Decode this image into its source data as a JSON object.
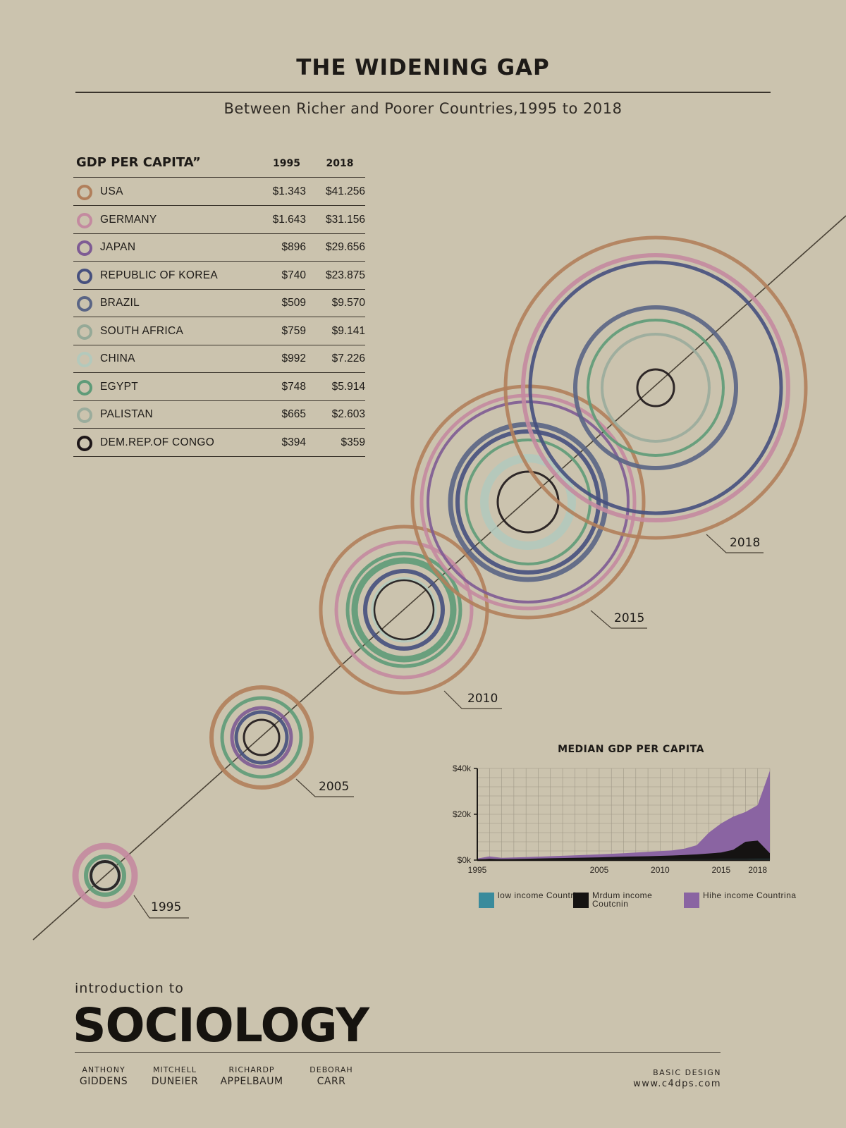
{
  "header": {
    "title": "THE WIDENING GAP",
    "subtitle": "Between Richer and Poorer Countries,1995 to 2018"
  },
  "table": {
    "heading": "GDP PER CAPITA”",
    "col_1995": "1995",
    "col_2018": "2018",
    "rows": [
      {
        "country": "USA",
        "v1995": "$1.343",
        "v2018": "$41.256",
        "color": "#b17f5b"
      },
      {
        "country": "GERMANY",
        "v1995": "$1.643",
        "v2018": "$31.156",
        "color": "#c48aa0"
      },
      {
        "country": "JAPAN",
        "v1995": "$896",
        "v2018": "$29.656",
        "color": "#7e5b94"
      },
      {
        "country": "REPUBLIC OF KOREA",
        "v1995": "$740",
        "v2018": "$23.875",
        "color": "#46507e"
      },
      {
        "country": "BRAZIL",
        "v1995": "$509",
        "v2018": "$9.570",
        "color": "#5a6585"
      },
      {
        "country": "SOUTH AFRICA",
        "v1995": "$759",
        "v2018": "$9.141",
        "color": "#95a997"
      },
      {
        "country": "CHINA",
        "v1995": "$992",
        "v2018": "$7.226",
        "color": "#b3c9bc"
      },
      {
        "country": "EGYPT",
        "v1995": "$748",
        "v2018": "$5.914",
        "color": "#5e9b78"
      },
      {
        "country": "PALISTAN",
        "v1995": "$665",
        "v2018": "$2.603",
        "color": "#9aac9c"
      },
      {
        "country": "DEM.REP.OF CONGO",
        "v1995": "$394",
        "v2018": "$359",
        "color": "#1d1618"
      }
    ]
  },
  "year_labels": [
    "1995",
    "2005",
    "2010",
    "2015",
    "2018"
  ],
  "chart_data": {
    "type": "area",
    "title": "MEDIAN GDP PER CAPITA",
    "x": [
      1995,
      1996,
      1997,
      1999,
      2001,
      2003,
      2005,
      2007,
      2009,
      2011,
      2012,
      2013,
      2014,
      2015,
      2016,
      2017,
      2018,
      2019
    ],
    "x_ticks": [
      "1995",
      "2005",
      "2010",
      "2015",
      "2018"
    ],
    "y_ticks": [
      "$40k",
      "$20k",
      "$0k"
    ],
    "ylim": [
      0,
      40000
    ],
    "xlim": [
      1995,
      2019
    ],
    "series": [
      {
        "name": "low income Countriea",
        "color": "#3a8b9c",
        "values": [
          300,
          300,
          300,
          300,
          300,
          300,
          350,
          350,
          350,
          400,
          400,
          400,
          400,
          450,
          450,
          450,
          500,
          500
        ]
      },
      {
        "name": "Mrdum income Coutcnin",
        "color": "#151312",
        "values": [
          200,
          600,
          400,
          600,
          800,
          1000,
          1200,
          1500,
          1700,
          2000,
          2200,
          2500,
          2900,
          3300,
          4500,
          8000,
          8500,
          3000
        ]
      },
      {
        "name": "Hihe income Countrina",
        "color": "#8a64a2",
        "values": [
          700,
          1600,
          1000,
          1300,
          1700,
          2100,
          2500,
          3000,
          3600,
          4200,
          5000,
          6500,
          12000,
          16000,
          19000,
          21000,
          24000,
          39000
        ]
      }
    ],
    "grid": true
  },
  "footer": {
    "intro": "introduction to",
    "book_title": "SOCIOLOGY",
    "authors": [
      {
        "first": "ANTHONY",
        "last": "GIDDENS"
      },
      {
        "first": "MITCHELL",
        "last": "DUNEIER"
      },
      {
        "first": "RICHARDP",
        "last": "APPELBAUM"
      },
      {
        "first": "DEBORAH",
        "last": "CARR"
      }
    ],
    "credit_line1": "BASIC DESIGN",
    "credit_line2": "www.c4dps.com"
  }
}
